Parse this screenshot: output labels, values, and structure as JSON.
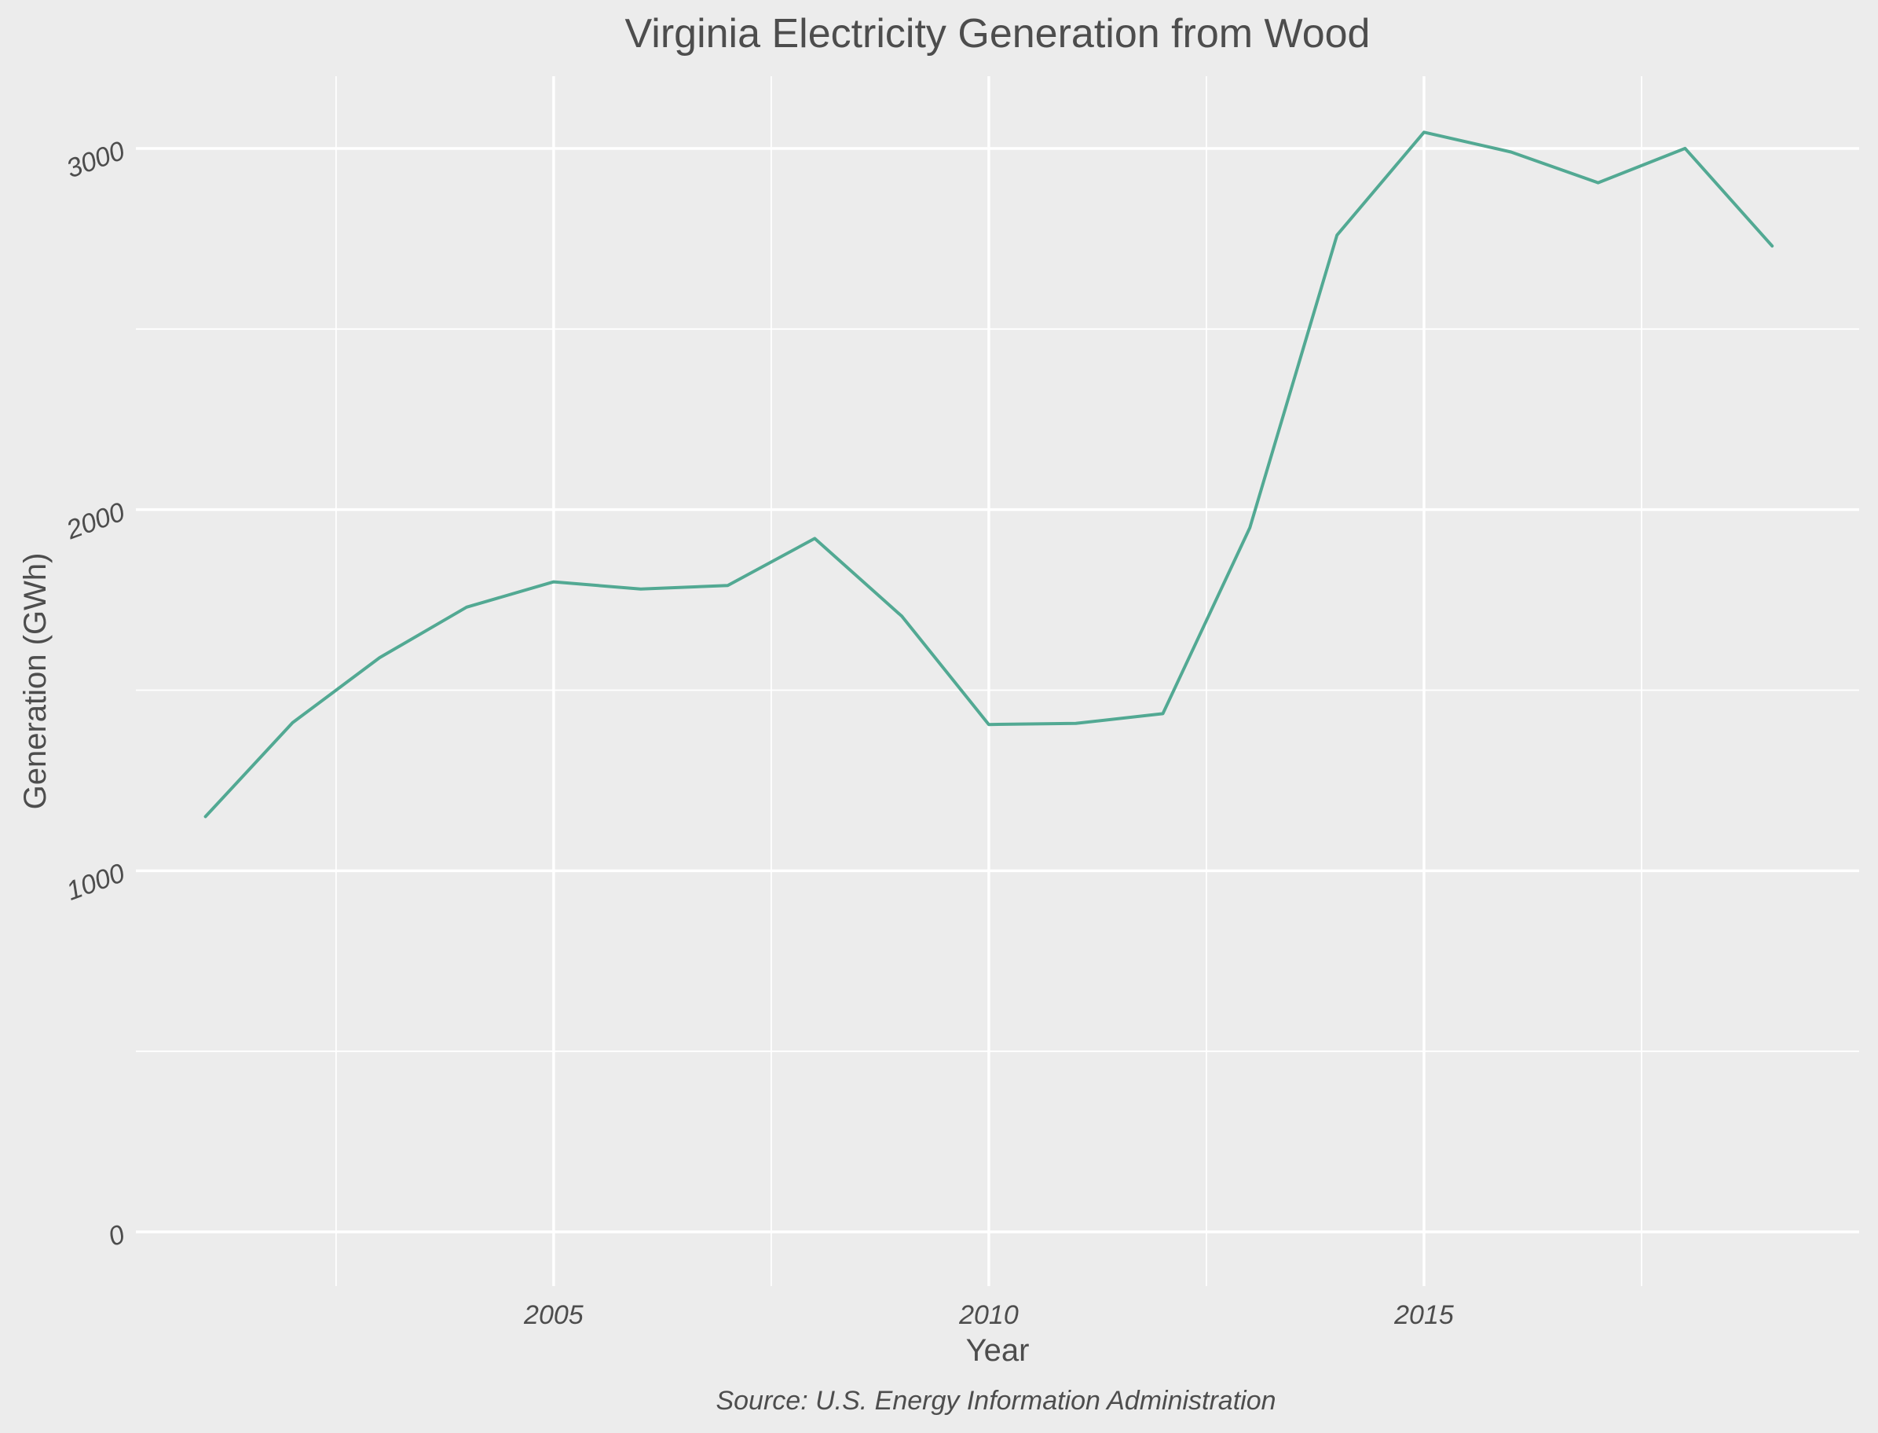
{
  "chart_data": {
    "type": "line",
    "title": "Virginia Electricity Generation from Wood",
    "xlabel": "Year",
    "ylabel": "Generation (GWh)",
    "caption": "Source: U.S. Energy Information Administration",
    "xlim": [
      2000.2,
      2020.0
    ],
    "ylim": [
      -150,
      3200
    ],
    "x_ticks": [
      2005,
      2010,
      2015
    ],
    "x_tick_labels": [
      "2005",
      "2010",
      "2015"
    ],
    "y_ticks": [
      0,
      1000,
      2000,
      3000
    ],
    "y_tick_labels": [
      "0",
      "1000",
      "2000",
      "3000"
    ],
    "grid": true,
    "line_color": "#52a993",
    "series": [
      {
        "x": [
          2001,
          2002,
          2003,
          2004,
          2005,
          2006,
          2007,
          2008,
          2009,
          2010,
          2011,
          2012,
          2013,
          2014,
          2015,
          2016,
          2017,
          2018,
          2019
        ],
        "values": [
          1150,
          1410,
          1590,
          1730,
          1800,
          1780,
          1790,
          1920,
          1705,
          1405,
          1408,
          1435,
          1950,
          2760,
          3045,
          2990,
          2905,
          3000,
          2730
        ]
      }
    ]
  }
}
